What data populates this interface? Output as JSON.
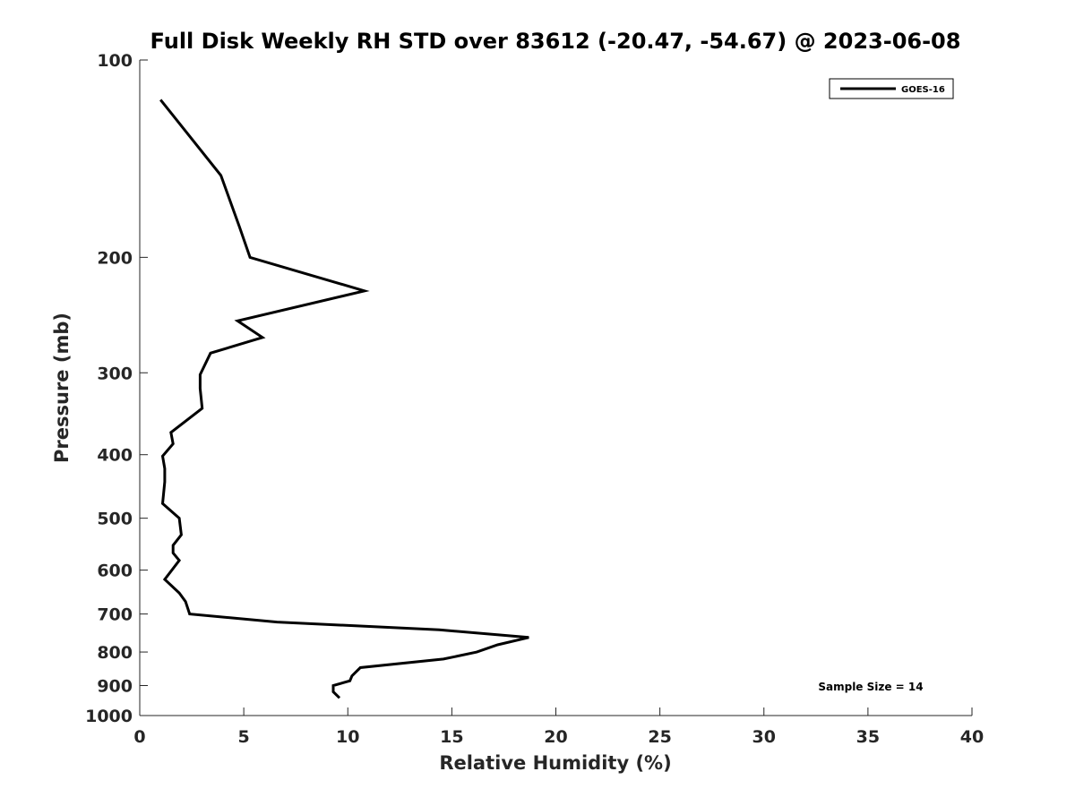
{
  "chart_data": {
    "type": "line",
    "title": "Full Disk Weekly RH STD over 83612 (-20.47, -54.67) @ 2023-06-08",
    "xlabel": "Relative Humidity (%)",
    "ylabel": "Pressure (mb)",
    "xlim": [
      0,
      40
    ],
    "ylim": [
      100,
      1000
    ],
    "y_scale": "log",
    "y_reversed": true,
    "x_ticks": [
      0,
      5,
      10,
      15,
      20,
      25,
      30,
      35,
      40
    ],
    "y_ticks": [
      100,
      200,
      300,
      400,
      500,
      600,
      700,
      800,
      900,
      1000
    ],
    "grid": false,
    "legend_position": "top-right",
    "annotation": "Sample Size = 14",
    "series": [
      {
        "name": "GOES-16",
        "color": "#000000",
        "x": [
          1.0,
          3.9,
          4.8,
          5.3,
          10.8,
          4.7,
          5.9,
          3.4,
          2.9,
          2.9,
          3.0,
          1.5,
          1.6,
          1.1,
          1.2,
          1.2,
          1.1,
          1.9,
          2.0,
          1.6,
          1.6,
          1.9,
          1.2,
          1.9,
          2.2,
          2.4,
          6.6,
          14.4,
          18.7,
          17.2,
          16.2,
          14.6,
          10.6,
          10.2,
          10.1,
          9.3,
          9.3,
          9.6
        ],
        "y": [
          115,
          150,
          180,
          200,
          225,
          250,
          265,
          280,
          302,
          317,
          340,
          370,
          385,
          402,
          420,
          440,
          475,
          500,
          530,
          550,
          565,
          580,
          620,
          650,
          670,
          700,
          720,
          740,
          760,
          780,
          800,
          820,
          845,
          870,
          885,
          900,
          920,
          940
        ]
      }
    ]
  }
}
